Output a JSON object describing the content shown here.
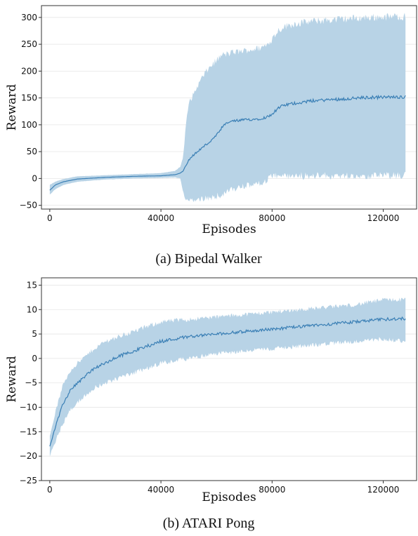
{
  "colors": {
    "band": "#b8d3e6",
    "line": "#3a7fb5",
    "grid": "#e6e6e6",
    "axis": "#333333"
  },
  "chart_data": [
    {
      "type": "line",
      "caption": "(a) Bipedal Walker",
      "xlabel": "Episodes",
      "ylabel": "Reward",
      "xlim": [
        -3000,
        132000
      ],
      "ylim": [
        -57,
        322
      ],
      "xticks": [
        0,
        40000,
        80000,
        120000
      ],
      "yticks": [
        -50,
        0,
        50,
        100,
        150,
        200,
        250,
        300
      ],
      "grid": "horizontal",
      "series": [
        {
          "x": [
            0,
            2000,
            5000,
            10000,
            20000,
            30000,
            40000,
            45000,
            47000,
            48000,
            49000,
            50000,
            52000,
            55000,
            58000,
            60000,
            62000,
            64000,
            66000,
            70000,
            75000,
            78000,
            80000,
            82000,
            84000,
            88000,
            95000,
            105000,
            115000,
            128000
          ],
          "mean": [
            -22,
            -12,
            -6,
            -1,
            2,
            4,
            5,
            7,
            10,
            14,
            25,
            35,
            45,
            58,
            70,
            80,
            95,
            104,
            107,
            109,
            111,
            114,
            120,
            130,
            136,
            140,
            145,
            148,
            151,
            152
          ],
          "upper": [
            -12,
            -6,
            -1,
            4,
            6,
            8,
            10,
            14,
            22,
            40,
            100,
            140,
            160,
            190,
            210,
            220,
            230,
            232,
            235,
            238,
            242,
            248,
            260,
            275,
            282,
            288,
            293,
            297,
            300,
            302
          ],
          "lower": [
            -30,
            -20,
            -12,
            -6,
            -2,
            0,
            1,
            2,
            0,
            -25,
            -40,
            -42,
            -40,
            -38,
            -36,
            -33,
            -30,
            -25,
            -20,
            -15,
            -10,
            -5,
            5,
            5,
            5,
            5,
            5,
            5,
            5,
            5
          ]
        }
      ]
    },
    {
      "type": "line",
      "caption": "(b) ATARI Pong",
      "xlabel": "Episodes",
      "ylabel": "Reward",
      "xlim": [
        -3000,
        132000
      ],
      "ylim": [
        -25,
        16.5
      ],
      "xticks": [
        0,
        40000,
        80000,
        120000
      ],
      "yticks": [
        -25,
        -20,
        -15,
        -10,
        -5,
        0,
        5,
        10,
        15
      ],
      "grid": "horizontal",
      "series": [
        {
          "x": [
            0,
            2000,
            5000,
            8000,
            12000,
            16000,
            20000,
            25000,
            30000,
            35000,
            40000,
            50000,
            60000,
            70000,
            80000,
            90000,
            100000,
            110000,
            120000,
            128000
          ],
          "mean": [
            -18,
            -14,
            -9,
            -6,
            -4,
            -2,
            -1,
            0.5,
            1.5,
            2.5,
            3.5,
            4.5,
            5,
            5.5,
            6,
            6.5,
            7,
            7.5,
            8,
            8.2
          ],
          "upper": [
            -16,
            -11,
            -5,
            -2,
            0,
            2,
            3.5,
            4.5,
            5.5,
            6.5,
            7.5,
            8,
            8.5,
            9,
            9.5,
            10,
            10.5,
            11,
            12,
            12
          ],
          "lower": [
            -20,
            -17,
            -13,
            -10,
            -8,
            -6,
            -5,
            -4,
            -3,
            -2,
            -1,
            0,
            1,
            1.5,
            2,
            2.5,
            3,
            3.5,
            4,
            3.5
          ]
        }
      ]
    }
  ]
}
